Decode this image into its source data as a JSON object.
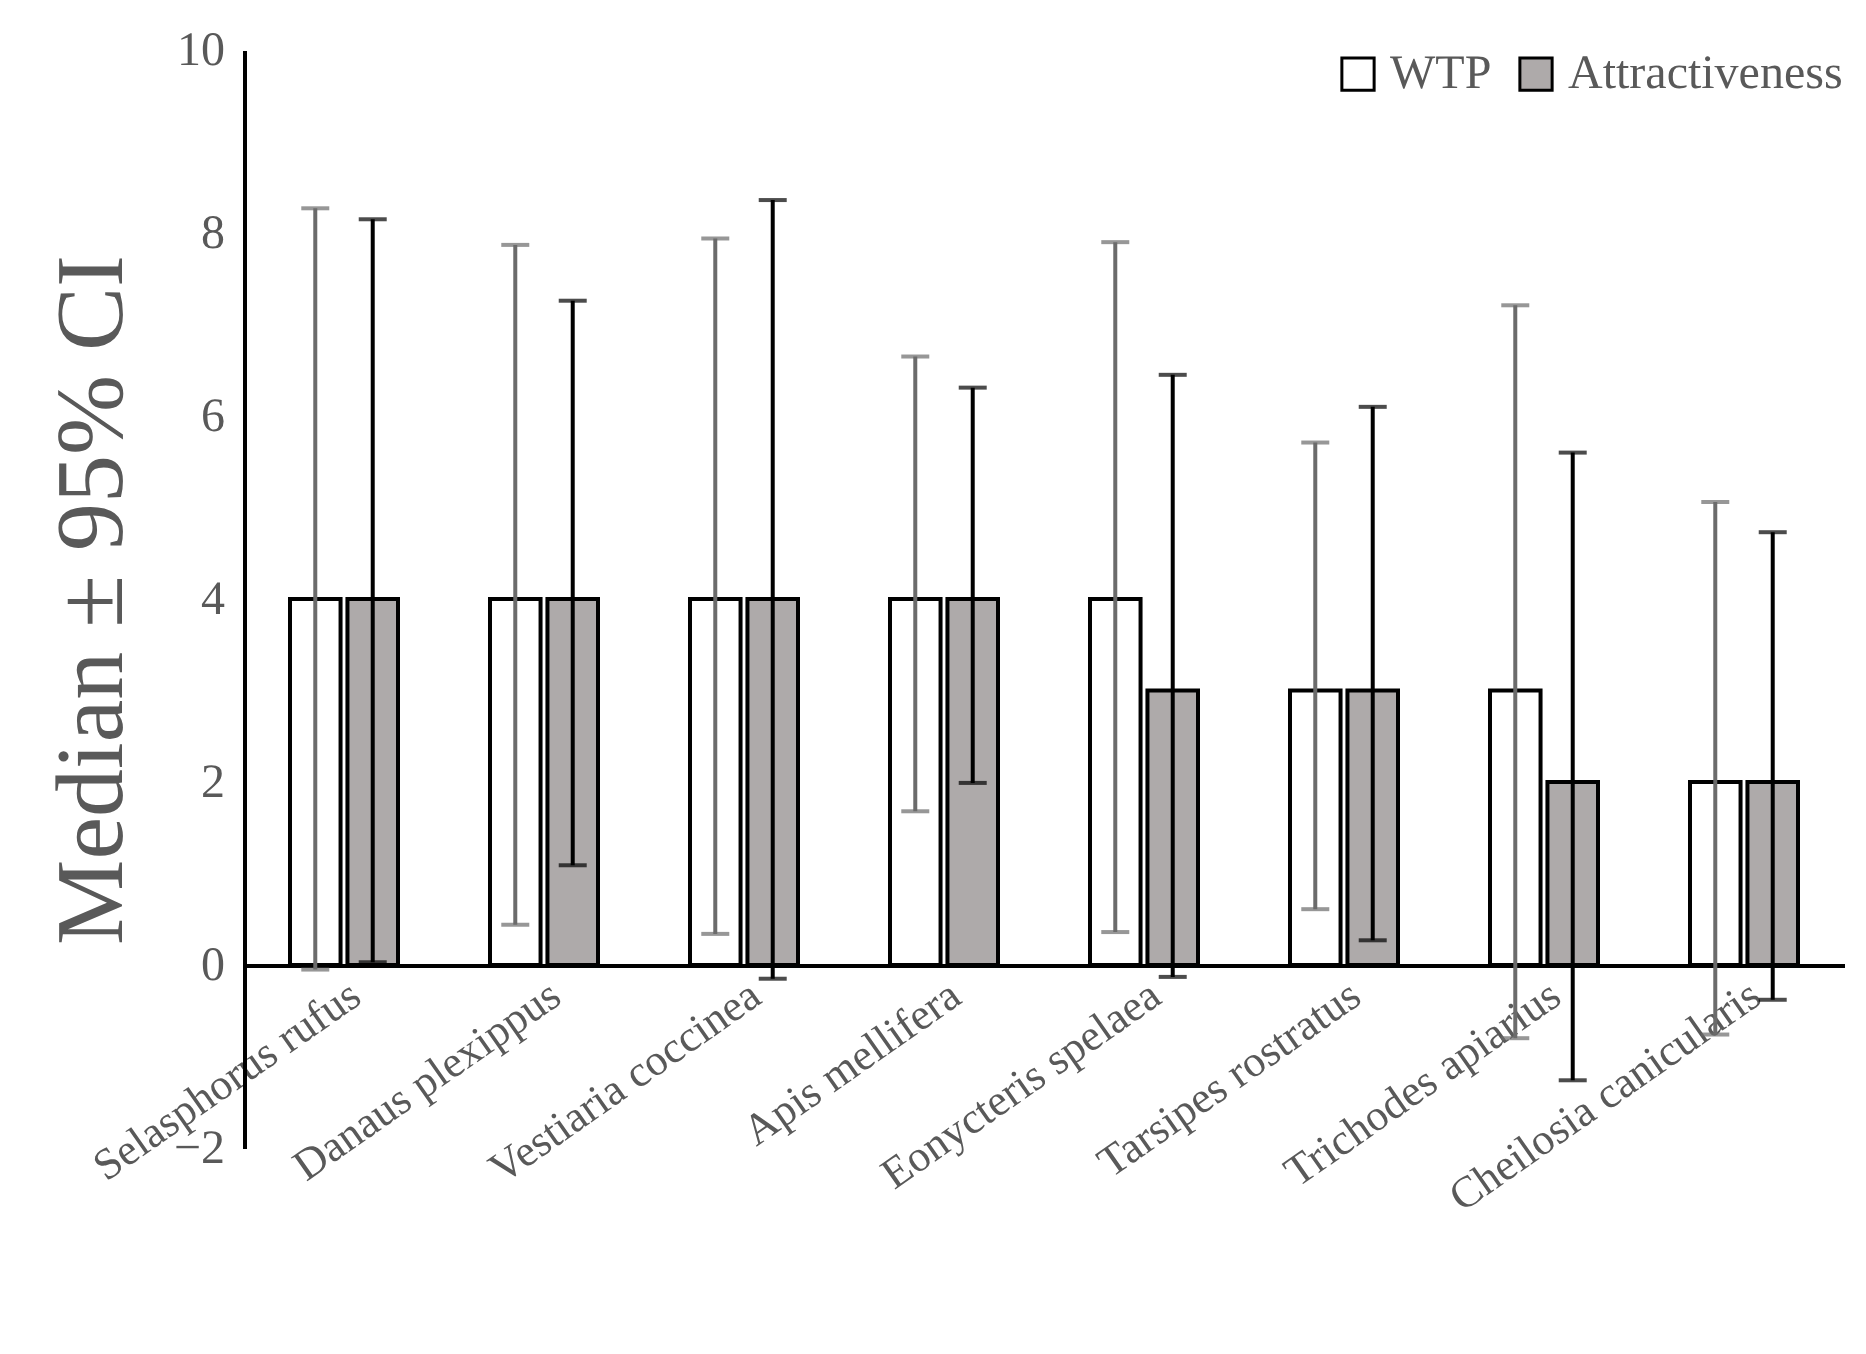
{
  "chart_data": {
    "type": "bar",
    "ylabel": "Median ± 95% CI",
    "categories": [
      "Selasphorus rufus",
      "Danaus plexippus",
      "Vestiaria coccinea",
      "Apis mellifera",
      "Eonycteris spelaea",
      "Tarsipes rostratus",
      "Trichodes apiarius",
      "Cheilosia canicularis"
    ],
    "series": [
      {
        "name": "WTP",
        "color": "#ffffff",
        "values": [
          4,
          4,
          4,
          4,
          4,
          3,
          3,
          2
        ],
        "errors": [
          [
            -0.05,
            8.27
          ],
          [
            0.44,
            7.87
          ],
          [
            0.34,
            7.94
          ],
          [
            1.68,
            6.65
          ],
          [
            0.36,
            7.9
          ],
          [
            0.61,
            5.71
          ],
          [
            -0.8,
            7.21
          ],
          [
            -0.76,
            5.06
          ]
        ]
      },
      {
        "name": "Attractiveness",
        "color": "#aeaaaa",
        "values": [
          4,
          4,
          4,
          4,
          3,
          3,
          2,
          2
        ],
        "errors": [
          [
            0.03,
            8.15
          ],
          [
            1.09,
            7.26
          ],
          [
            -0.15,
            8.36
          ],
          [
            1.99,
            6.31
          ],
          [
            -0.13,
            6.45
          ],
          [
            0.27,
            6.1
          ],
          [
            -1.26,
            5.6
          ],
          [
            -0.38,
            4.73
          ]
        ]
      }
    ],
    "ylim": [
      -2,
      10
    ],
    "yticks": [
      -2,
      0,
      2,
      4,
      6,
      8,
      10
    ],
    "grid": false,
    "legend": "top right"
  }
}
